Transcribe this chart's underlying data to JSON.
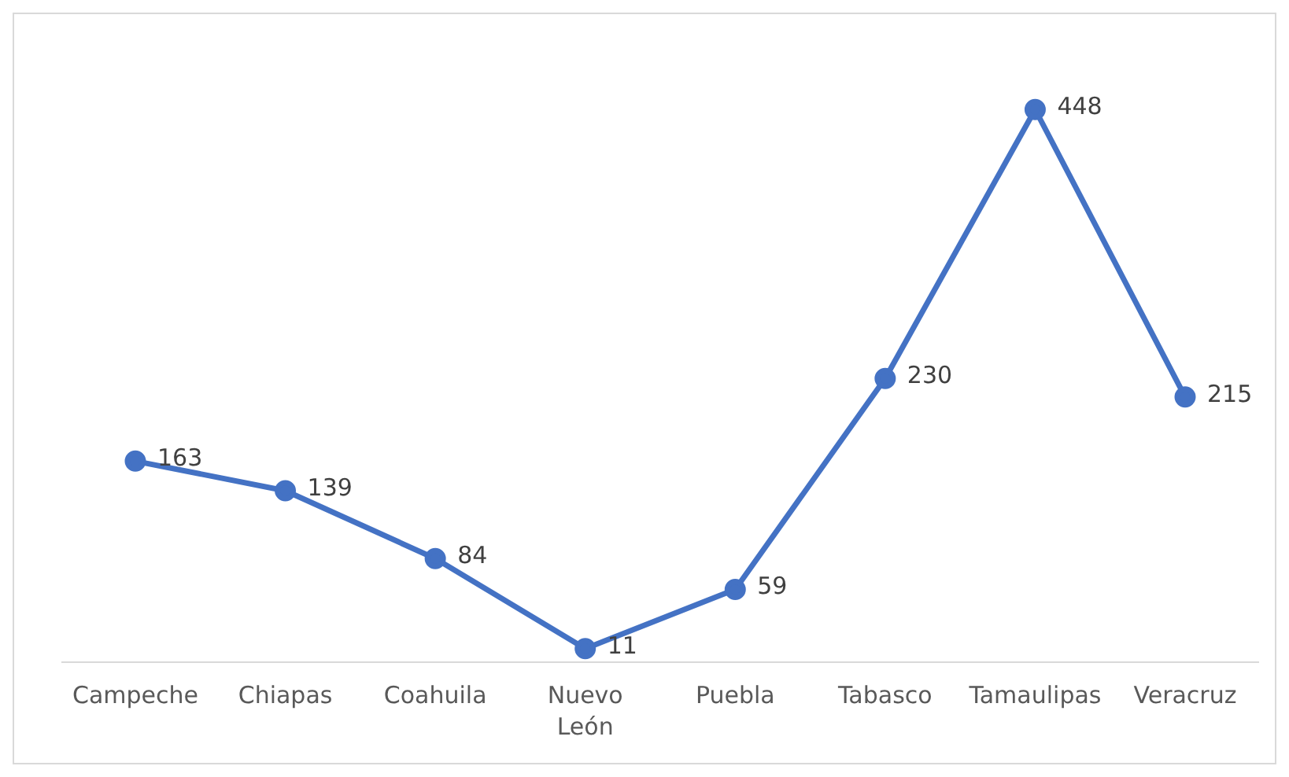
{
  "chart_data": {
    "type": "line",
    "categories": [
      "Campeche",
      "Chiapas",
      "Coahuila",
      "Nuevo León",
      "Puebla",
      "Tabasco",
      "Tamaulipas",
      "Veracruz"
    ],
    "series": [
      {
        "color": "#4472c4",
        "values": [
          163,
          139,
          84,
          11,
          59,
          230,
          448,
          215
        ]
      }
    ],
    "data_labels": true,
    "marker": "circle",
    "line_style": "solid",
    "grid": false,
    "legend": false
  }
}
